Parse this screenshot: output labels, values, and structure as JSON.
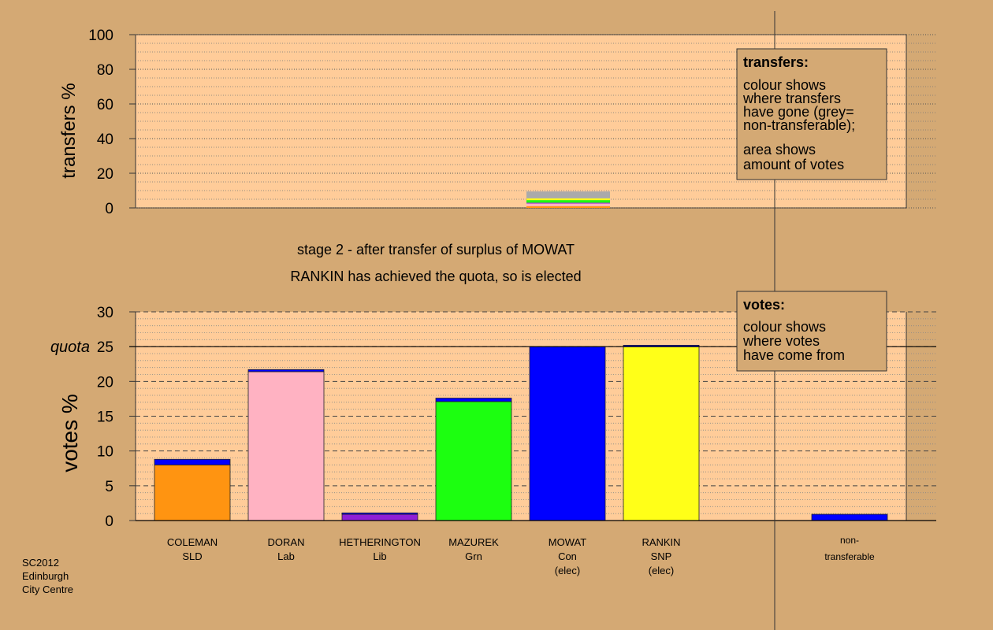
{
  "caption": {
    "line1": "stage 2 - after transfer of surplus of MOWAT",
    "line2": "RANKIN has achieved the quota, so is elected"
  },
  "footer": [
    "SC2012",
    "Edinburgh",
    "City Centre"
  ],
  "colors": {
    "background": "#d4a974",
    "plot_bg": "#ffcc99",
    "legend_bg": "#d4a974",
    "Con": "#0000ff",
    "SLD": "#ff9411",
    "Lab": "#ffb2c2",
    "Lib": "#8f1fd6",
    "Grn": "#1cff10",
    "SNP": "#ffff18",
    "nontransferable": "#aaaaaa"
  },
  "chart_data": [
    {
      "type": "bar",
      "name": "transfers",
      "ylabel": "transfers %",
      "ylim": [
        0,
        100
      ],
      "yticks": [
        0,
        20,
        40,
        60,
        80,
        100
      ],
      "grid": "dotted",
      "legend": {
        "title": "transfers:",
        "lines": [
          "colour shows",
          "where transfers",
          "have gone (grey=",
          "non-transferable);"
        ],
        "lines2": [
          "area shows",
          "amount of votes"
        ]
      },
      "transfer_bar": {
        "source": "MOWAT",
        "stack": [
          {
            "party": "SLD",
            "value": 1.0
          },
          {
            "party": "Lab",
            "value": 1.5
          },
          {
            "party": "Lib",
            "value": 0.5
          },
          {
            "party": "Grn",
            "value": 1.5
          },
          {
            "party": "SNP",
            "value": 1.0
          },
          {
            "party": "nontransferable",
            "value": 4.0
          }
        ]
      }
    },
    {
      "type": "bar",
      "name": "votes",
      "ylabel": "votes %",
      "ylim": [
        0,
        30
      ],
      "yticks": [
        0,
        5,
        10,
        15,
        20,
        25,
        30
      ],
      "quota": 25,
      "quota_label": "quota",
      "grid": "dashed",
      "legend": {
        "title": "votes:",
        "lines": [
          "colour shows",
          "where votes",
          "have come from"
        ]
      },
      "categories": [
        {
          "name": "COLEMAN",
          "party": "SLD",
          "note": "",
          "base": 8.0,
          "transfer": 0.8
        },
        {
          "name": "DORAN",
          "party": "Lab",
          "note": "",
          "base": 21.4,
          "transfer": 0.3
        },
        {
          "name": "HETHERINGTON",
          "party": "Lib",
          "note": "",
          "base": 0.9,
          "transfer": 0.2
        },
        {
          "name": "MAZUREK",
          "party": "Grn",
          "note": "",
          "base": 17.1,
          "transfer": 0.5
        },
        {
          "name": "MOWAT",
          "party": "Con",
          "note": "(elec)",
          "base": 25.0,
          "transfer": 0
        },
        {
          "name": "RANKIN",
          "party": "SNP",
          "note": "(elec)",
          "base": 25.0,
          "transfer": 0.2
        }
      ],
      "nontransferable": {
        "label1": "non-",
        "label2": "transferable",
        "value": 0.9
      }
    }
  ]
}
